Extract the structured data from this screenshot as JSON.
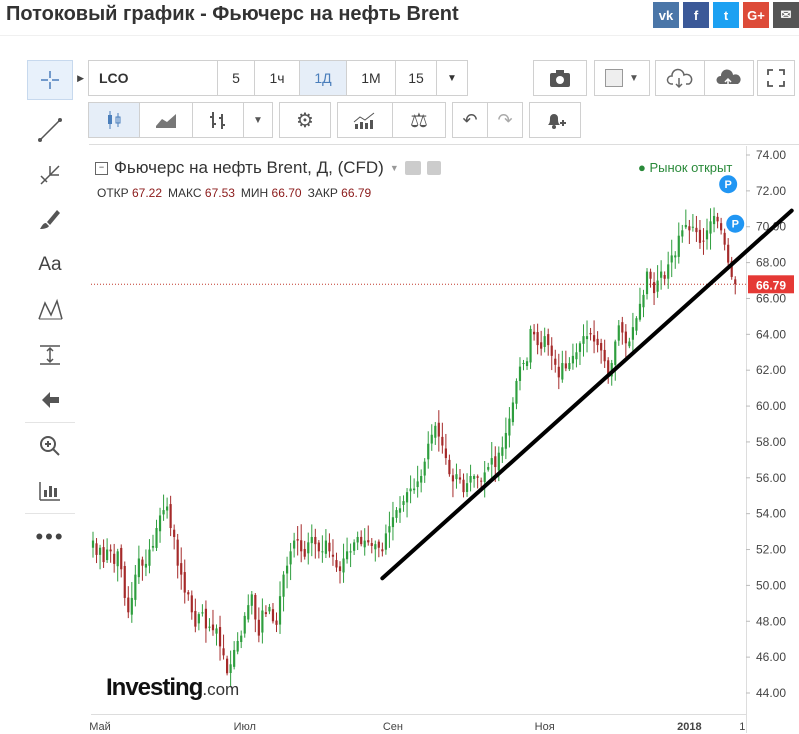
{
  "page": {
    "title": "Потоковый график - Фьючерс на нефть Brent",
    "share": [
      {
        "name": "vk-icon",
        "label": "vk",
        "color": "#4a76a8"
      },
      {
        "name": "facebook-icon",
        "label": "f",
        "color": "#3b5998"
      },
      {
        "name": "twitter-icon",
        "label": "t",
        "color": "#1da1f2"
      },
      {
        "name": "google-plus-icon",
        "label": "G+",
        "color": "#dd4b39"
      },
      {
        "name": "email-icon",
        "label": "✉",
        "color": "#555555"
      }
    ]
  },
  "toolbar": {
    "symbol": "LCO",
    "intervals": [
      "5",
      "1ч",
      "1Д",
      "1М",
      "15"
    ],
    "active_interval": "1Д"
  },
  "legend": {
    "title": "Фьючерс на нефть Brent, Д, (CFD)",
    "ohlc": [
      {
        "label": "ОТКР",
        "value": "67.22"
      },
      {
        "label": "МАКС",
        "value": "67.53"
      },
      {
        "label": "МИН",
        "value": "66.70"
      },
      {
        "label": "ЗАКР",
        "value": "66.79"
      }
    ],
    "market_status": "● Рынок открыт"
  },
  "branding": {
    "logo": "Investing",
    "logo_suffix": ".com"
  },
  "colors": {
    "up": "#2e9e3e",
    "down": "#a52a2a",
    "trendline": "#000000",
    "price_line": "#c0392b",
    "price_badge": "#e53935"
  },
  "chart_data": {
    "type": "candlestick",
    "title": "Фьючерс на нефть Brent, Д, (CFD)",
    "y_ticks": [
      "74.00",
      "72.00",
      "70.00",
      "68.00",
      "66.00",
      "64.00",
      "62.00",
      "60.00",
      "58.00",
      "56.00",
      "54.00",
      "52.00",
      "50.00",
      "48.00",
      "46.00",
      "44.00"
    ],
    "ylim": [
      43.2,
      74.8
    ],
    "x_labels": [
      {
        "label": "Май",
        "index": 2
      },
      {
        "label": "Июл",
        "index": 43
      },
      {
        "label": "Сен",
        "index": 85
      },
      {
        "label": "Ноя",
        "index": 128
      },
      {
        "label": "2018",
        "index": 169
      },
      {
        "label": "1",
        "index": 184
      }
    ],
    "last_price": "66.79",
    "last_price_value": 66.79,
    "dividend_markers": [
      {
        "label": "P",
        "index": 180,
        "value": 71.7
      },
      {
        "label": "P",
        "index": 182,
        "value": 69.5
      }
    ],
    "trendline": {
      "from": {
        "index": 82,
        "value": 50.4
      },
      "to": {
        "index": 198,
        "value": 70.9
      }
    },
    "closes": [
      52.5,
      51.7,
      52.1,
      51.3,
      52.0,
      51.9,
      51.2,
      51.9,
      50.9,
      49.3,
      48.5,
      49.3,
      50.6,
      51.5,
      51.1,
      51.2,
      52.0,
      52.2,
      53.2,
      53.9,
      54.2,
      54.4,
      53.2,
      52.7,
      51.1,
      50.6,
      49.6,
      49.5,
      48.5,
      47.7,
      48.4,
      48.5,
      47.6,
      47.7,
      47.5,
      47.6,
      46.6,
      46.1,
      45.1,
      45.6,
      46.4,
      46.9,
      47.2,
      48.3,
      48.9,
      49.5,
      48.1,
      47.2,
      48.6,
      48.4,
      48.8,
      48.0,
      47.8,
      49.4,
      50.6,
      51.1,
      51.9,
      52.5,
      52.5,
      51.9,
      51.6,
      52.4,
      52.7,
      52.3,
      51.9,
      51.9,
      52.5,
      51.9,
      51.6,
      51.0,
      50.8,
      51.5,
      51.9,
      51.9,
      52.4,
      52.7,
      52.3,
      52.5,
      52.4,
      52.2,
      52.3,
      52.1,
      51.9,
      52.9,
      53.3,
      53.8,
      54.2,
      54.3,
      54.7,
      55.2,
      55.4,
      55.4,
      55.8,
      56.1,
      56.9,
      57.9,
      58.4,
      58.9,
      58.3,
      57.8,
      57.1,
      56.2,
      55.8,
      56.2,
      55.9,
      55.2,
      55.7,
      56.1,
      56.1,
      56.0,
      55.8,
      56.3,
      56.6,
      57.1,
      56.6,
      57.4,
      57.7,
      58.5,
      59.3,
      60.2,
      61.4,
      62.2,
      62.4,
      62.5,
      64.3,
      64.0,
      63.4,
      63.2,
      63.9,
      63.4,
      62.8,
      62.3,
      61.6,
      62.4,
      62.1,
      62.4,
      62.8,
      63.0,
      63.5,
      63.9,
      63.9,
      64.0,
      63.6,
      63.4,
      63.1,
      62.5,
      61.7,
      62.4,
      63.6,
      64.5,
      64.1,
      63.5,
      63.6,
      64.4,
      64.9,
      65.7,
      66.2,
      67.5,
      67.1,
      66.3,
      67.0,
      67.5,
      67.1,
      67.9,
      68.4,
      68.4,
      69.5,
      69.8,
      70.1,
      69.8,
      70.0,
      69.7,
      69.1,
      69.2,
      69.8,
      70.3,
      70.6,
      70.3,
      69.8,
      69.0,
      68.0,
      67.2,
      66.8
    ]
  }
}
